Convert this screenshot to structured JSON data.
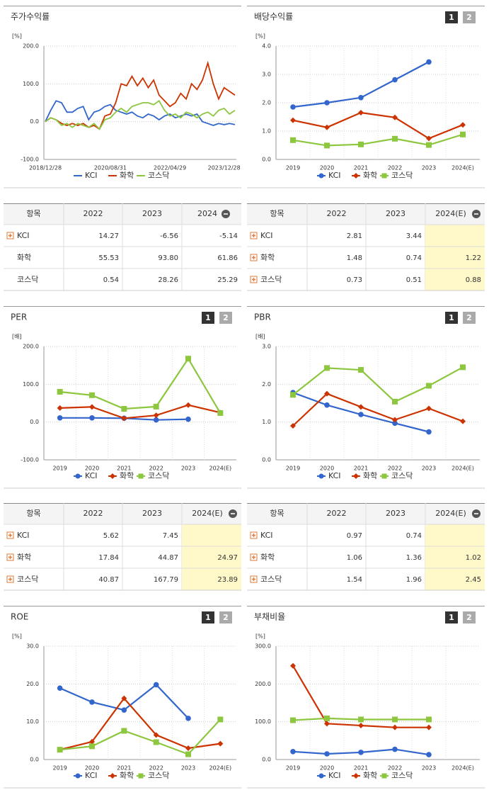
{
  "chart_data": [
    {
      "type": "line",
      "title": "주가수익률",
      "unit": "[%]",
      "categories": [
        "2018/12/28",
        null,
        null,
        null,
        null,
        null,
        null,
        null,
        null,
        null,
        null,
        null,
        "2020/08/31",
        null,
        null,
        null,
        null,
        null,
        null,
        null,
        null,
        null,
        null,
        "2022/04/29",
        null,
        null,
        null,
        null,
        null,
        null,
        null,
        null,
        null,
        "2023/12/28",
        null,
        null
      ],
      "ylim": [
        -100,
        200
      ],
      "yticks": [
        {
          "value": -100,
          "label": "-100.0"
        },
        {
          "value": 0,
          "label": "0.0"
        },
        {
          "value": 100,
          "label": "100.0"
        },
        {
          "value": 200,
          "label": "200.0"
        }
      ],
      "grid": true,
      "series": [
        {
          "name": "KCI",
          "color": "#3366cc",
          "values": [
            0,
            30,
            55,
            50,
            25,
            25,
            35,
            40,
            5,
            25,
            30,
            40,
            45,
            30,
            25,
            20,
            25,
            15,
            10,
            20,
            15,
            5,
            15,
            20,
            10,
            15,
            20,
            15,
            20,
            0,
            -5,
            -10,
            -5,
            -8,
            -5,
            -8
          ]
        },
        {
          "name": "화학",
          "color": "#cc3300",
          "values": [
            0,
            10,
            5,
            -5,
            -10,
            -5,
            -10,
            -5,
            -15,
            -10,
            -20,
            15,
            20,
            50,
            100,
            95,
            120,
            95,
            115,
            90,
            110,
            70,
            55,
            40,
            50,
            75,
            60,
            100,
            85,
            110,
            155,
            100,
            60,
            90,
            80,
            70
          ]
        },
        {
          "name": "코스닥",
          "color": "#8dc63f",
          "values": [
            0,
            10,
            5,
            -10,
            -5,
            -15,
            -5,
            -10,
            -15,
            -5,
            -20,
            5,
            10,
            25,
            35,
            25,
            40,
            45,
            50,
            50,
            45,
            55,
            30,
            15,
            20,
            10,
            25,
            20,
            10,
            20,
            25,
            15,
            30,
            35,
            20,
            30
          ]
        }
      ]
    },
    {
      "type": "line_marker",
      "title": "배당수익률",
      "unit": "[%]",
      "pages": [
        "1",
        "2"
      ],
      "categories": [
        "2019",
        "2020",
        "2021",
        "2022",
        "2023",
        "2024(E)"
      ],
      "ylim": [
        0,
        4
      ],
      "yticks": [
        {
          "value": 0,
          "label": "0.0"
        },
        {
          "value": 1,
          "label": "1.0"
        },
        {
          "value": 2,
          "label": "2.0"
        },
        {
          "value": 3,
          "label": "3.0"
        },
        {
          "value": 4,
          "label": "4.0"
        }
      ],
      "grid": true,
      "series": [
        {
          "name": "KCI",
          "color": "#3366cc",
          "marker": "circle",
          "values": [
            1.85,
            2.0,
            2.18,
            2.81,
            3.44,
            null
          ]
        },
        {
          "name": "화학",
          "color": "#cc3300",
          "marker": "diamond",
          "values": [
            1.38,
            1.13,
            1.65,
            1.48,
            0.74,
            1.22
          ]
        },
        {
          "name": "코스닥",
          "color": "#8dc63f",
          "marker": "square",
          "values": [
            0.68,
            0.49,
            0.53,
            0.73,
            0.51,
            0.88
          ]
        }
      ]
    },
    {
      "type": "line_marker",
      "title": "PER",
      "unit": "[배]",
      "pages": [
        "1",
        "2"
      ],
      "categories": [
        "2019",
        "2020",
        "2021",
        "2022",
        "2023",
        "2024(E)"
      ],
      "ylim": [
        -100,
        200
      ],
      "yticks": [
        {
          "value": -100,
          "label": "-100.0"
        },
        {
          "value": 0,
          "label": "0.0"
        },
        {
          "value": 100,
          "label": "100.0"
        },
        {
          "value": 200,
          "label": "200.0"
        }
      ],
      "grid": true,
      "series": [
        {
          "name": "KCI",
          "color": "#3366cc",
          "marker": "circle",
          "values": [
            11,
            11,
            10,
            5.62,
            7.45,
            null
          ]
        },
        {
          "name": "화학",
          "color": "#cc3300",
          "marker": "diamond",
          "values": [
            37,
            40,
            10,
            17.84,
            44.87,
            24.97
          ]
        },
        {
          "name": "코스닥",
          "color": "#8dc63f",
          "marker": "square",
          "values": [
            80,
            71,
            35,
            40.87,
            167.79,
            23.89
          ]
        }
      ]
    },
    {
      "type": "line_marker",
      "title": "PBR",
      "unit": "[배]",
      "pages": [
        "1",
        "2"
      ],
      "categories": [
        "2019",
        "2020",
        "2021",
        "2022",
        "2023",
        "2024(E)"
      ],
      "ylim": [
        0,
        3
      ],
      "yticks": [
        {
          "value": 0,
          "label": "0.0"
        },
        {
          "value": 1,
          "label": "1.0"
        },
        {
          "value": 2,
          "label": "2.0"
        },
        {
          "value": 3,
          "label": "3.0"
        }
      ],
      "grid": true,
      "series": [
        {
          "name": "KCI",
          "color": "#3366cc",
          "marker": "circle",
          "values": [
            1.78,
            1.45,
            1.2,
            0.97,
            0.74,
            null
          ]
        },
        {
          "name": "화학",
          "color": "#cc3300",
          "marker": "diamond",
          "values": [
            0.9,
            1.75,
            1.4,
            1.06,
            1.36,
            1.02
          ]
        },
        {
          "name": "코스닥",
          "color": "#8dc63f",
          "marker": "square",
          "values": [
            1.72,
            2.43,
            2.38,
            1.54,
            1.96,
            2.45
          ]
        }
      ]
    },
    {
      "type": "line_marker",
      "title": "ROE",
      "unit": "[%]",
      "pages": [
        "1",
        "2"
      ],
      "categories": [
        "2019",
        "2020",
        "2021",
        "2022",
        "2023",
        "2024(E)"
      ],
      "ylim": [
        0,
        30
      ],
      "yticks": [
        {
          "value": 0,
          "label": "0.0"
        },
        {
          "value": 10,
          "label": "10.0"
        },
        {
          "value": 20,
          "label": "20.0"
        },
        {
          "value": 30,
          "label": "30.0"
        }
      ],
      "grid": true,
      "series": [
        {
          "name": "KCI",
          "color": "#3366cc",
          "marker": "circle",
          "values": [
            18.9,
            15.2,
            13.1,
            19.8,
            10.9,
            null
          ]
        },
        {
          "name": "화학",
          "color": "#cc3300",
          "marker": "diamond",
          "values": [
            2.6,
            4.7,
            16.2,
            6.5,
            3.0,
            4.2
          ]
        },
        {
          "name": "코스닥",
          "color": "#8dc63f",
          "marker": "square",
          "values": [
            2.6,
            3.5,
            7.6,
            4.6,
            1.4,
            10.6
          ]
        }
      ]
    },
    {
      "type": "line_marker",
      "title": "부채비율",
      "unit": "[%]",
      "pages": [
        "1",
        "2"
      ],
      "categories": [
        "2019",
        "2020",
        "2021",
        "2022",
        "2023",
        "2024(E)"
      ],
      "ylim": [
        0,
        300
      ],
      "yticks": [
        {
          "value": 0,
          "label": "0.0"
        },
        {
          "value": 100,
          "label": "100.0"
        },
        {
          "value": 200,
          "label": "200.0"
        },
        {
          "value": 300,
          "label": "300.0"
        }
      ],
      "grid": true,
      "series": [
        {
          "name": "KCI",
          "color": "#3366cc",
          "marker": "circle",
          "values": [
            21,
            15,
            19,
            27,
            13,
            null
          ]
        },
        {
          "name": "화학",
          "color": "#cc3300",
          "marker": "diamond",
          "values": [
            248,
            95,
            90,
            85,
            85,
            null
          ]
        },
        {
          "name": "코스닥",
          "color": "#8dc63f",
          "marker": "square",
          "values": [
            104,
            109,
            106,
            106,
            106,
            null
          ]
        }
      ]
    }
  ],
  "tables": [
    {
      "columns": [
        "항목",
        "2022",
        "2023",
        "2024"
      ],
      "highlight_last": false,
      "rows": [
        {
          "label": "KCI",
          "expandable": true,
          "values": [
            "14.27",
            "-6.56",
            "-5.14"
          ]
        },
        {
          "label": "화학",
          "expandable": false,
          "values": [
            "55.53",
            "93.80",
            "61.86"
          ]
        },
        {
          "label": "코스닥",
          "expandable": false,
          "values": [
            "0.54",
            "28.26",
            "25.29"
          ]
        }
      ]
    },
    {
      "columns": [
        "항목",
        "2022",
        "2023",
        "2024(E)"
      ],
      "highlight_last": true,
      "rows": [
        {
          "label": "KCI",
          "expandable": true,
          "values": [
            "2.81",
            "3.44",
            null
          ]
        },
        {
          "label": "화학",
          "expandable": true,
          "values": [
            "1.48",
            "0.74",
            "1.22"
          ]
        },
        {
          "label": "코스닥",
          "expandable": true,
          "values": [
            "0.73",
            "0.51",
            "0.88"
          ]
        }
      ]
    },
    {
      "columns": [
        "항목",
        "2022",
        "2023",
        "2024(E)"
      ],
      "highlight_last": true,
      "rows": [
        {
          "label": "KCI",
          "expandable": true,
          "values": [
            "5.62",
            "7.45",
            null
          ]
        },
        {
          "label": "화학",
          "expandable": true,
          "values": [
            "17.84",
            "44.87",
            "24.97"
          ]
        },
        {
          "label": "코스닥",
          "expandable": true,
          "values": [
            "40.87",
            "167.79",
            "23.89"
          ]
        }
      ]
    },
    {
      "columns": [
        "항목",
        "2022",
        "2023",
        "2024(E)"
      ],
      "highlight_last": true,
      "rows": [
        {
          "label": "KCI",
          "expandable": true,
          "values": [
            "0.97",
            "0.74",
            null
          ]
        },
        {
          "label": "화학",
          "expandable": true,
          "values": [
            "1.06",
            "1.36",
            "1.02"
          ]
        },
        {
          "label": "코스닥",
          "expandable": true,
          "values": [
            "1.54",
            "1.96",
            "2.45"
          ]
        }
      ]
    }
  ]
}
